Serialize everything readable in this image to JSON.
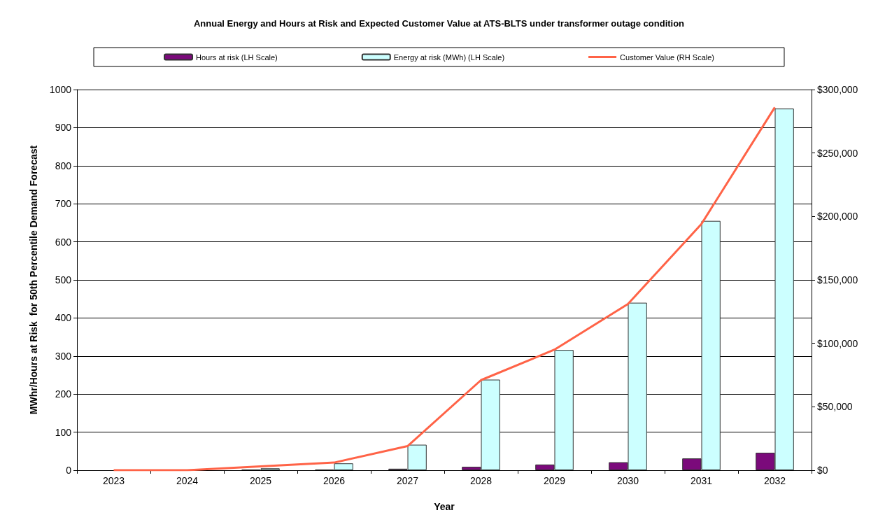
{
  "chart_data": {
    "type": "bar",
    "title": "Annual Energy and Hours at Risk and Expected Customer Value at ATS-BLTS under transformer outage condition",
    "xlabel": "Year",
    "ylabel": "MWhr/Hours at Risk  for 50th Percentile Demand Forecast",
    "categories": [
      "2023",
      "2024",
      "2025",
      "2026",
      "2027",
      "2028",
      "2029",
      "2030",
      "2031",
      "2032"
    ],
    "series": [
      {
        "name": "Hours at risk (LH Scale)",
        "color": "#7b0a7b",
        "values": [
          0,
          0,
          2,
          2,
          4,
          9,
          15,
          21,
          31,
          46
        ]
      },
      {
        "name": "Energy at risk (MWh) (LH Scale)",
        "color": "#ccffff",
        "values": [
          0,
          0,
          5,
          18,
          67,
          238,
          316,
          440,
          655,
          950
        ]
      },
      {
        "name": "Customer Value (RH Scale)",
        "type": "line",
        "axis": "y2",
        "color": "#ff6347",
        "values": [
          0,
          0,
          3000,
          6000,
          19000,
          71000,
          95000,
          131000,
          194000,
          286000
        ]
      }
    ],
    "ylim": [
      0,
      1000
    ],
    "yticks": [
      0,
      100,
      200,
      300,
      400,
      500,
      600,
      700,
      800,
      900,
      1000
    ],
    "y2lim": [
      0,
      300000
    ],
    "y2ticks": [
      {
        "value": 0,
        "label": "$0"
      },
      {
        "value": 50000,
        "label": "$50,000"
      },
      {
        "value": 100000,
        "label": "$100,000"
      },
      {
        "value": 150000,
        "label": "$150,000"
      },
      {
        "value": 200000,
        "label": "$200,000"
      },
      {
        "value": 250000,
        "label": "$250,000"
      },
      {
        "value": 300000,
        "label": "$300,000"
      }
    ],
    "grid": "y",
    "legend": "top",
    "marker": "none",
    "line_style": "solid"
  }
}
